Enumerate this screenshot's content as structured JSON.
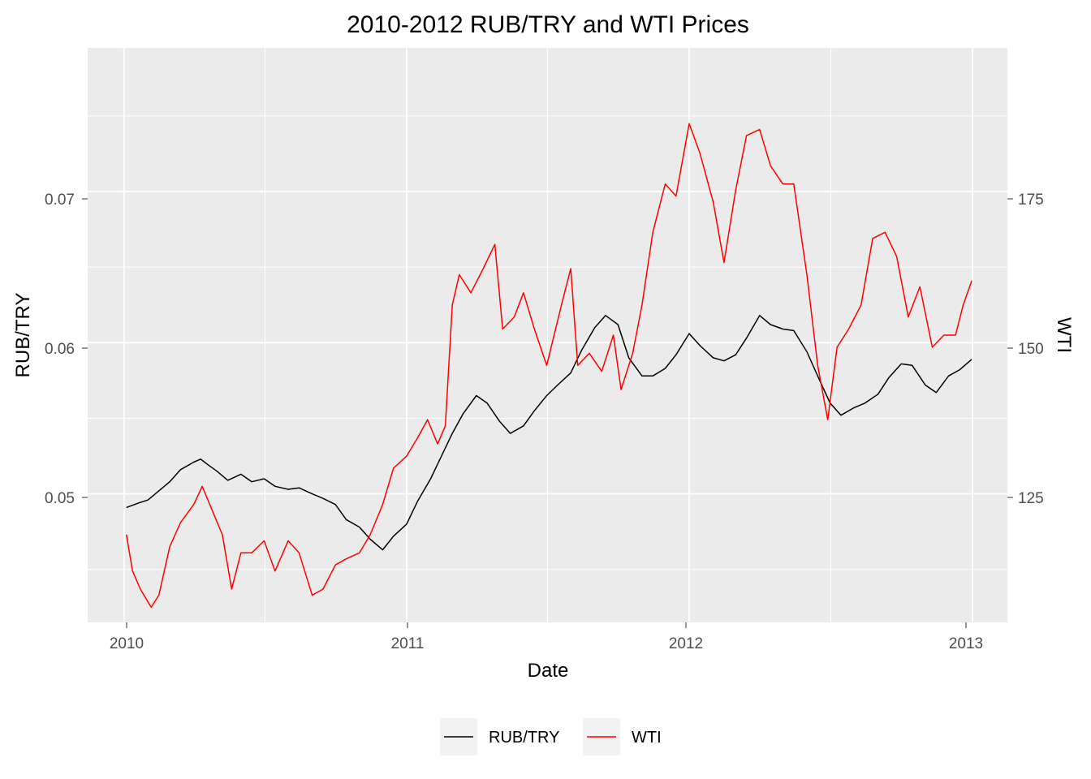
{
  "chart_data": {
    "type": "line",
    "title": "2010-2012 RUB/TRY and WTI Prices",
    "xlabel": "Date",
    "ylabel_left": "RUB/TRY",
    "ylabel_right": "WTI",
    "x_ticks": [
      "2010",
      "2011",
      "2012",
      "2013"
    ],
    "y_left_ticks": [
      "0.05",
      "0.06",
      "0.07"
    ],
    "y_right_ticks": [
      "125",
      "150",
      "175"
    ],
    "xlim": [
      "2009-11-15",
      "2013-02-15"
    ],
    "ylim_left": [
      0.0415,
      0.0795
    ],
    "ylim_right": [
      107.5,
      202.5
    ],
    "grid": true,
    "legend_position": "bottom",
    "series": [
      {
        "name": "RUB/TRY",
        "axis": "left",
        "color": "#000000",
        "points": [
          [
            "2010-01-04",
            0.0491
          ],
          [
            "2010-01-20",
            0.0494
          ],
          [
            "2010-02-01",
            0.0496
          ],
          [
            "2010-02-15",
            0.0502
          ],
          [
            "2010-03-01",
            0.0508
          ],
          [
            "2010-03-15",
            0.0516
          ],
          [
            "2010-04-01",
            0.0521
          ],
          [
            "2010-04-10",
            0.0523
          ],
          [
            "2010-04-20",
            0.0519
          ],
          [
            "2010-05-01",
            0.0515
          ],
          [
            "2010-05-15",
            0.0509
          ],
          [
            "2010-06-01",
            0.0513
          ],
          [
            "2010-06-15",
            0.0508
          ],
          [
            "2010-07-01",
            0.051
          ],
          [
            "2010-07-15",
            0.0505
          ],
          [
            "2010-08-01",
            0.0503
          ],
          [
            "2010-08-15",
            0.0504
          ],
          [
            "2010-09-01",
            0.05
          ],
          [
            "2010-09-15",
            0.0497
          ],
          [
            "2010-10-01",
            0.0493
          ],
          [
            "2010-10-15",
            0.0483
          ],
          [
            "2010-11-01",
            0.0478
          ],
          [
            "2010-11-15",
            0.047
          ],
          [
            "2010-12-01",
            0.0463
          ],
          [
            "2010-12-15",
            0.0472
          ],
          [
            "2011-01-01",
            0.048
          ],
          [
            "2011-01-15",
            0.0495
          ],
          [
            "2011-02-01",
            0.051
          ],
          [
            "2011-02-15",
            0.0525
          ],
          [
            "2011-03-01",
            0.054
          ],
          [
            "2011-03-15",
            0.0553
          ],
          [
            "2011-04-01",
            0.0565
          ],
          [
            "2011-04-15",
            0.056
          ],
          [
            "2011-05-01",
            0.0548
          ],
          [
            "2011-05-15",
            0.054
          ],
          [
            "2011-06-01",
            0.0545
          ],
          [
            "2011-06-15",
            0.0555
          ],
          [
            "2011-07-01",
            0.0565
          ],
          [
            "2011-07-15",
            0.0572
          ],
          [
            "2011-08-01",
            0.058
          ],
          [
            "2011-08-15",
            0.0595
          ],
          [
            "2011-09-01",
            0.061
          ],
          [
            "2011-09-15",
            0.0618
          ],
          [
            "2011-10-01",
            0.0612
          ],
          [
            "2011-10-15",
            0.059
          ],
          [
            "2011-11-01",
            0.0578
          ],
          [
            "2011-11-15",
            0.0578
          ],
          [
            "2011-12-01",
            0.0583
          ],
          [
            "2011-12-15",
            0.0592
          ],
          [
            "2012-01-01",
            0.0606
          ],
          [
            "2012-01-15",
            0.0598
          ],
          [
            "2012-02-01",
            0.059
          ],
          [
            "2012-02-15",
            0.0588
          ],
          [
            "2012-03-01",
            0.0592
          ],
          [
            "2012-03-15",
            0.0603
          ],
          [
            "2012-04-01",
            0.0618
          ],
          [
            "2012-04-15",
            0.0612
          ],
          [
            "2012-05-01",
            0.0609
          ],
          [
            "2012-05-15",
            0.0608
          ],
          [
            "2012-06-01",
            0.0594
          ],
          [
            "2012-06-15",
            0.0578
          ],
          [
            "2012-07-01",
            0.056
          ],
          [
            "2012-07-15",
            0.0552
          ],
          [
            "2012-08-01",
            0.0557
          ],
          [
            "2012-08-15",
            0.056
          ],
          [
            "2012-09-01",
            0.0566
          ],
          [
            "2012-09-15",
            0.0577
          ],
          [
            "2012-10-01",
            0.0586
          ],
          [
            "2012-10-15",
            0.0585
          ],
          [
            "2012-11-01",
            0.0572
          ],
          [
            "2012-11-15",
            0.0567
          ],
          [
            "2012-12-01",
            0.0578
          ],
          [
            "2012-12-15",
            0.0582
          ],
          [
            "2012-12-31",
            0.0589
          ]
        ]
      },
      {
        "name": "WTI",
        "axis": "right",
        "color": "#ff0000",
        "points": [
          [
            "2010-01-04",
            122
          ],
          [
            "2010-01-12",
            116
          ],
          [
            "2010-01-22",
            113
          ],
          [
            "2010-02-05",
            110
          ],
          [
            "2010-02-15",
            112
          ],
          [
            "2010-03-01",
            120
          ],
          [
            "2010-03-15",
            124
          ],
          [
            "2010-04-01",
            127
          ],
          [
            "2010-04-12",
            130
          ],
          [
            "2010-04-25",
            126
          ],
          [
            "2010-05-08",
            122
          ],
          [
            "2010-05-20",
            113
          ],
          [
            "2010-06-01",
            119
          ],
          [
            "2010-06-15",
            119
          ],
          [
            "2010-07-01",
            121
          ],
          [
            "2010-07-15",
            116
          ],
          [
            "2010-08-01",
            121
          ],
          [
            "2010-08-15",
            119
          ],
          [
            "2010-09-01",
            112
          ],
          [
            "2010-09-15",
            113
          ],
          [
            "2010-10-01",
            117
          ],
          [
            "2010-10-15",
            118
          ],
          [
            "2010-11-01",
            119
          ],
          [
            "2010-11-15",
            122
          ],
          [
            "2010-12-01",
            127
          ],
          [
            "2010-12-15",
            133
          ],
          [
            "2011-01-01",
            135
          ],
          [
            "2011-01-15",
            138
          ],
          [
            "2011-01-28",
            141
          ],
          [
            "2011-02-10",
            137
          ],
          [
            "2011-02-20",
            140
          ],
          [
            "2011-03-01",
            160
          ],
          [
            "2011-03-10",
            165
          ],
          [
            "2011-03-25",
            162
          ],
          [
            "2011-04-10",
            166
          ],
          [
            "2011-04-25",
            170
          ],
          [
            "2011-05-05",
            156
          ],
          [
            "2011-05-20",
            158
          ],
          [
            "2011-06-01",
            162
          ],
          [
            "2011-06-15",
            156
          ],
          [
            "2011-07-01",
            150
          ],
          [
            "2011-07-20",
            160
          ],
          [
            "2011-08-01",
            166
          ],
          [
            "2011-08-10",
            150
          ],
          [
            "2011-08-25",
            152
          ],
          [
            "2011-09-10",
            149
          ],
          [
            "2011-09-25",
            155
          ],
          [
            "2011-10-05",
            146
          ],
          [
            "2011-10-20",
            152
          ],
          [
            "2011-11-01",
            160
          ],
          [
            "2011-11-15",
            172
          ],
          [
            "2011-12-01",
            180
          ],
          [
            "2011-12-15",
            178
          ],
          [
            "2012-01-01",
            190
          ],
          [
            "2012-01-15",
            185
          ],
          [
            "2012-02-01",
            177
          ],
          [
            "2012-02-15",
            167
          ],
          [
            "2012-03-01",
            179
          ],
          [
            "2012-03-15",
            188
          ],
          [
            "2012-04-01",
            189
          ],
          [
            "2012-04-15",
            183
          ],
          [
            "2012-05-01",
            180
          ],
          [
            "2012-05-15",
            180
          ],
          [
            "2012-06-01",
            165
          ],
          [
            "2012-06-15",
            150
          ],
          [
            "2012-06-28",
            141
          ],
          [
            "2012-07-10",
            153
          ],
          [
            "2012-07-25",
            156
          ],
          [
            "2012-08-10",
            160
          ],
          [
            "2012-08-25",
            171
          ],
          [
            "2012-09-10",
            172
          ],
          [
            "2012-09-25",
            168
          ],
          [
            "2012-10-10",
            158
          ],
          [
            "2012-10-25",
            163
          ],
          [
            "2012-11-10",
            153
          ],
          [
            "2012-11-25",
            155
          ],
          [
            "2012-12-10",
            155
          ],
          [
            "2012-12-20",
            160
          ],
          [
            "2012-12-31",
            164
          ]
        ]
      }
    ]
  }
}
